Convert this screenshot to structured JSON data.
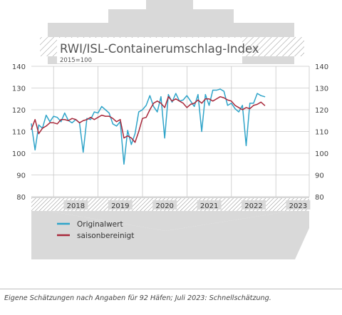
{
  "colors": {
    "original": "#2fa4c9",
    "adjusted": "#a8283a",
    "ship": "#d9d9d9",
    "grid": "#c8c8c8"
  },
  "chart_data": {
    "type": "line",
    "title": "RWI/ISL-Containerumschlag-Index",
    "subtitle": "2015=100",
    "ylim": [
      80,
      140
    ],
    "yticks": [
      80,
      90,
      100,
      110,
      120,
      130,
      140
    ],
    "xlim": [
      2017.5,
      2023.75
    ],
    "year_labels": [
      "2018",
      "2019",
      "2020",
      "2021",
      "2022",
      "2023"
    ],
    "year_starts": [
      2018,
      2019,
      2020,
      2021,
      2022,
      2023
    ],
    "grid": true,
    "legend_position": "bottom-left",
    "series": [
      {
        "name": "Originalwert",
        "color_key": "original",
        "x_start": 2017.5,
        "x_step": 0.0833,
        "values": [
          113.5,
          101.5,
          113.0,
          111.5,
          117.5,
          114.5,
          117.0,
          116.5,
          114.5,
          118.5,
          115.0,
          114.0,
          115.5,
          114.0,
          100.5,
          116.0,
          115.5,
          119.0,
          118.5,
          121.5,
          120.0,
          118.5,
          113.5,
          112.5,
          114.5,
          95.0,
          110.5,
          104.0,
          109.0,
          119.0,
          120.0,
          122.0,
          126.5,
          121.5,
          119.0,
          126.0,
          107.0,
          127.0,
          123.5,
          127.5,
          124.0,
          124.5,
          126.5,
          124.0,
          121.5,
          127.0,
          110.0,
          127.0,
          122.0,
          129.0,
          129.0,
          129.5,
          128.5,
          122.0,
          123.0,
          120.5,
          119.0,
          122.0,
          103.5,
          123.0,
          123.0,
          127.5,
          126.5,
          126.0
        ]
      },
      {
        "name": "saisonbereinigt",
        "color_key": "adjusted",
        "x_start": 2017.5,
        "x_step": 0.0833,
        "values": [
          111.0,
          115.5,
          109.0,
          111.5,
          112.5,
          114.0,
          114.0,
          113.5,
          115.5,
          115.5,
          115.0,
          116.0,
          115.5,
          114.0,
          115.0,
          115.5,
          116.5,
          115.5,
          116.5,
          117.5,
          117.0,
          117.0,
          116.0,
          114.5,
          115.5,
          107.0,
          108.0,
          107.0,
          105.0,
          110.0,
          116.0,
          116.5,
          120.0,
          123.0,
          124.0,
          123.0,
          121.0,
          126.0,
          124.0,
          125.0,
          124.0,
          123.0,
          121.0,
          122.5,
          123.0,
          124.5,
          123.0,
          125.0,
          125.0,
          124.0,
          125.0,
          126.0,
          125.5,
          124.5,
          124.0,
          122.0,
          121.0,
          120.0,
          121.0,
          120.5,
          122.0,
          122.5,
          123.5,
          122.0
        ]
      }
    ]
  },
  "footer": "Eigene Schätzungen nach Angaben für 92 Häfen; Juli 2023: Schnellschätzung."
}
